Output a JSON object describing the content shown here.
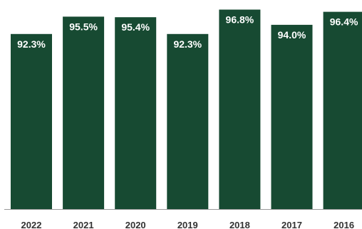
{
  "colors": {
    "bar": "#174a32",
    "axis": "#999999",
    "data_label": "#ffffff",
    "tick_label": "#333333"
  },
  "chart_data": {
    "type": "bar",
    "categories": [
      "2022",
      "2021",
      "2020",
      "2019",
      "2018",
      "2017",
      "2016"
    ],
    "values": [
      92.3,
      95.5,
      95.4,
      92.3,
      96.8,
      94.0,
      96.4
    ],
    "data_labels": [
      "92.3%",
      "95.5%",
      "95.4%",
      "92.3%",
      "96.8%",
      "94.0%",
      "96.4%"
    ],
    "title": "",
    "xlabel": "",
    "ylabel": "",
    "ylim": [
      60,
      97
    ],
    "grid": false,
    "legend": "none"
  }
}
